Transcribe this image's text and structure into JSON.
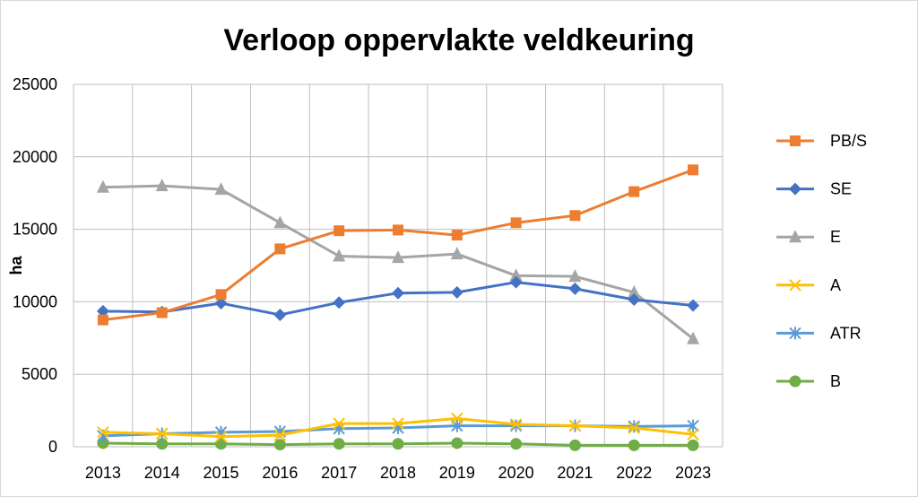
{
  "chart_data": {
    "type": "line",
    "title": "Verloop oppervlakte veldkeuring",
    "xlabel": "",
    "ylabel": "ha",
    "ylim": [
      0,
      25000
    ],
    "yticks": [
      0,
      5000,
      10000,
      15000,
      20000,
      25000
    ],
    "grid": "horizontal and vertical",
    "legend_position": "right",
    "categories": [
      "2013",
      "2014",
      "2015",
      "2016",
      "2017",
      "2018",
      "2019",
      "2020",
      "2021",
      "2022",
      "2023"
    ],
    "series": [
      {
        "name": "PB/S",
        "color": "#ED7D31",
        "marker": "square",
        "values": [
          8750,
          9250,
          10500,
          13650,
          14900,
          14950,
          14600,
          15450,
          15950,
          17600,
          19100
        ]
      },
      {
        "name": "SE",
        "color": "#4472C4",
        "marker": "diamond",
        "values": [
          9350,
          9300,
          9900,
          9100,
          9950,
          10600,
          10650,
          11350,
          10900,
          10150,
          9750
        ]
      },
      {
        "name": "E",
        "color": "#A5A5A5",
        "marker": "triangle",
        "values": [
          17900,
          18000,
          17750,
          15450,
          13150,
          13050,
          13300,
          11800,
          11750,
          10650,
          7450
        ]
      },
      {
        "name": "A",
        "color": "#FFC000",
        "marker": "x",
        "values": [
          1000,
          900,
          700,
          800,
          1600,
          1600,
          1950,
          1550,
          1450,
          1300,
          850
        ]
      },
      {
        "name": "ATR",
        "color": "#5B9BD5",
        "marker": "star",
        "values": [
          750,
          900,
          1000,
          1050,
          1250,
          1300,
          1450,
          1450,
          1450,
          1400,
          1450
        ]
      },
      {
        "name": "B",
        "color": "#70AD47",
        "marker": "circle",
        "values": [
          250,
          200,
          200,
          150,
          200,
          200,
          250,
          200,
          100,
          100,
          100
        ]
      }
    ]
  }
}
